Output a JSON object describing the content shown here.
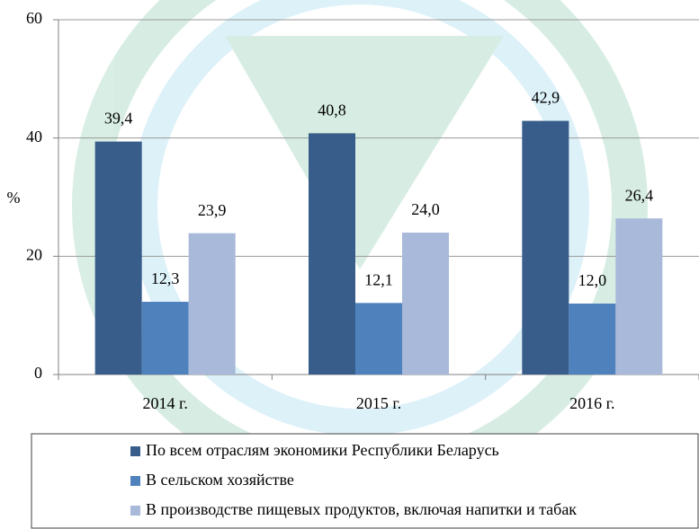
{
  "chart_data": {
    "type": "bar",
    "categories": [
      "2014 г.",
      "2015 г.",
      "2016 г."
    ],
    "y_label": "%",
    "series": [
      {
        "name": "По всем отраслям экономики Республики Беларусь",
        "color": "#385d8a",
        "values": [
          39.4,
          40.8,
          42.9
        ],
        "value_labels": [
          "39,4",
          "40,8",
          "42,9"
        ]
      },
      {
        "name": "В сельском хозяйстве",
        "color": "#4f81bd",
        "values": [
          12.3,
          12.1,
          12.0
        ],
        "value_labels": [
          "12,3",
          "12,1",
          "12,0"
        ]
      },
      {
        "name": "В производстве пищевых продуктов, включая напитки и табак",
        "color": "#a8b9d9",
        "values": [
          23.9,
          24.0,
          26.4
        ],
        "value_labels": [
          "23,9",
          "24,0",
          "26,4"
        ]
      }
    ],
    "ylim": [
      0,
      60
    ],
    "yticks": [
      0,
      20,
      40,
      60
    ],
    "grid": true
  }
}
